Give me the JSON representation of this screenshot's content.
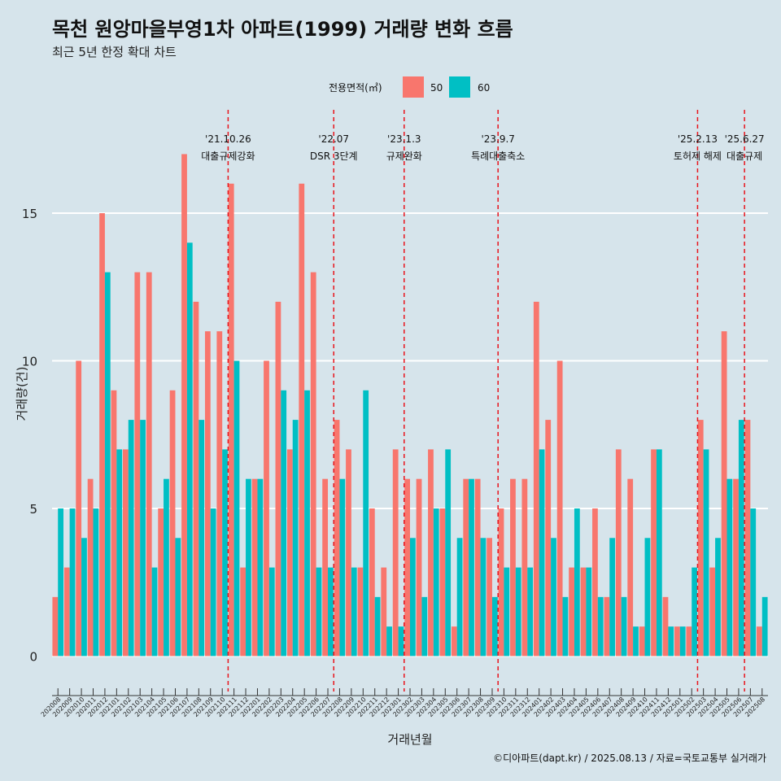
{
  "chart_data": {
    "type": "bar",
    "title": "목천 원앙마을부영1차 아파트(1999) 거래량 변화 흐름",
    "subtitle": "최근 5년 한정 확대 차트",
    "xlabel": "거래년월",
    "ylabel": "거래량(건)",
    "caption": "©디아파트(dapt.kr) / 2025.08.13 / 자료=국토교통부 실거래가",
    "legend": {
      "title": "전용면적(㎡)",
      "position": "top"
    },
    "ylim": [
      -1.2,
      18.5
    ],
    "yticks": [
      0,
      5,
      10,
      15
    ],
    "grid": true,
    "categories": [
      "202008",
      "202009",
      "202010",
      "202011",
      "202012",
      "202101",
      "202102",
      "202103",
      "202104",
      "202105",
      "202106",
      "202107",
      "202108",
      "202109",
      "202110",
      "202111",
      "202112",
      "202201",
      "202202",
      "202203",
      "202204",
      "202205",
      "202206",
      "202207",
      "202208",
      "202209",
      "202210",
      "202211",
      "202212",
      "202301",
      "202302",
      "202303",
      "202304",
      "202305",
      "202306",
      "202307",
      "202308",
      "202309",
      "202310",
      "202311",
      "202312",
      "202401",
      "202402",
      "202403",
      "202404",
      "202405",
      "202406",
      "202407",
      "202408",
      "202409",
      "202410",
      "202411",
      "202412",
      "202501",
      "202502",
      "202503",
      "202504",
      "202505",
      "202506",
      "202507",
      "202508"
    ],
    "series": [
      {
        "name": "50",
        "color": "#F8766D",
        "values": [
          2,
          3,
          10,
          6,
          15,
          9,
          7,
          13,
          13,
          5,
          9,
          17,
          12,
          11,
          11,
          16,
          3,
          6,
          10,
          12,
          7,
          16,
          13,
          6,
          8,
          7,
          3,
          5,
          3,
          7,
          6,
          6,
          7,
          5,
          1,
          6,
          6,
          4,
          5,
          6,
          6,
          12,
          8,
          10,
          3,
          3,
          5,
          2,
          7,
          6,
          1,
          7,
          2,
          1,
          1,
          8,
          3,
          11,
          6,
          8,
          1
        ]
      },
      {
        "name": "60",
        "color": "#00BFC4",
        "values": [
          5,
          5,
          4,
          5,
          13,
          7,
          8,
          8,
          3,
          6,
          4,
          14,
          8,
          5,
          7,
          10,
          6,
          6,
          3,
          9,
          8,
          9,
          3,
          3,
          6,
          3,
          9,
          2,
          1,
          1,
          4,
          2,
          5,
          7,
          4,
          6,
          4,
          2,
          3,
          3,
          3,
          7,
          4,
          2,
          5,
          3,
          2,
          4,
          2,
          1,
          4,
          7,
          1,
          1,
          3,
          7,
          4,
          6,
          8,
          5,
          2
        ]
      }
    ],
    "events": [
      {
        "date": "'21.10.26",
        "label": "대출규제강화",
        "after": "202110"
      },
      {
        "date": "'22.07",
        "label": "DSR 3단계",
        "after": "202207"
      },
      {
        "date": "'23.1.3",
        "label": "규제완화",
        "after": "202301"
      },
      {
        "date": "'23.9.7",
        "label": "특례대출축소",
        "after": "202309"
      },
      {
        "date": "'25.2.13",
        "label": "토허제 해제",
        "after": "202502"
      },
      {
        "date": "'25.6.27",
        "label": "대출규제",
        "after": "202506"
      }
    ]
  }
}
